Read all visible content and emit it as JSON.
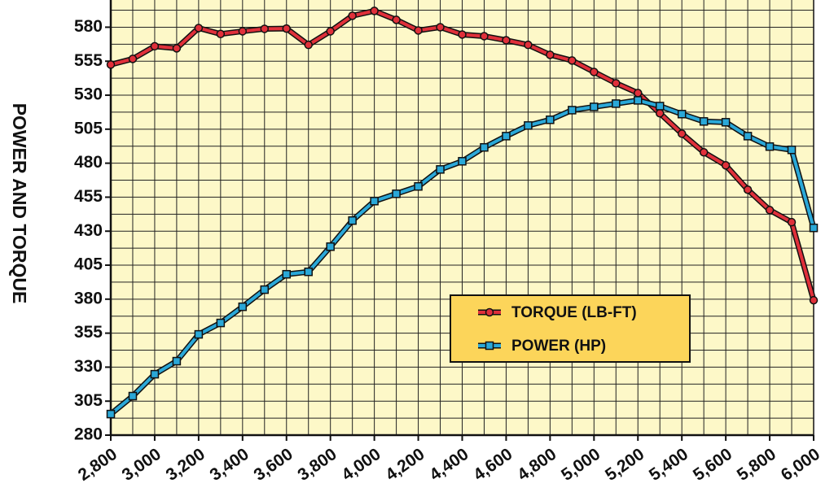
{
  "chart_data": {
    "type": "line",
    "y_label": "POWER AND TORQUE",
    "x": [
      2800,
      2900,
      3000,
      3100,
      3200,
      3300,
      3400,
      3500,
      3600,
      3700,
      3800,
      3900,
      4000,
      4100,
      4200,
      4300,
      4400,
      4500,
      4600,
      4700,
      4800,
      4900,
      5000,
      5100,
      5200,
      5300,
      5400,
      5500,
      5600,
      5700,
      5800,
      5900,
      6000
    ],
    "series": [
      {
        "name": "TORQUE (LB-FT)",
        "color": "#e0303a",
        "marker": "circle",
        "values": [
          552.5,
          556.7,
          566,
          564.5,
          579.4,
          575,
          577,
          578.8,
          579,
          567,
          577,
          588.4,
          592,
          585.4,
          577.6,
          580,
          574.6,
          573.4,
          570.4,
          567,
          559.7,
          555.5,
          547.1,
          538.8,
          531.6,
          516.7,
          501.7,
          488,
          478.4,
          460.5,
          445.5,
          436.6,
          379.2
        ]
      },
      {
        "name": "POWER (HP)",
        "color": "#2aa8d8",
        "marker": "square",
        "values": [
          295.5,
          308.7,
          324.8,
          334.4,
          354.1,
          362.5,
          374.4,
          387,
          398.3,
          400.1,
          418.6,
          437.8,
          452.1,
          457.5,
          462.9,
          475.4,
          481.4,
          491.6,
          499.9,
          507.7,
          511.9,
          519,
          521.4,
          523.8,
          526.2,
          522,
          516.1,
          510.7,
          510.1,
          499.9,
          492.2,
          489.8,
          432.4
        ]
      }
    ],
    "xlim": [
      2800,
      6000
    ],
    "xticks": [
      {
        "value": 2800,
        "label": "2,800"
      },
      {
        "value": 3000,
        "label": "3,000"
      },
      {
        "value": 3200,
        "label": "3,200"
      },
      {
        "value": 3400,
        "label": "3,400"
      },
      {
        "value": 3600,
        "label": "3,600"
      },
      {
        "value": 3800,
        "label": "3,800"
      },
      {
        "value": 4000,
        "label": "4,000"
      },
      {
        "value": 4200,
        "label": "4,200"
      },
      {
        "value": 4400,
        "label": "4,400"
      },
      {
        "value": 4600,
        "label": "4,600"
      },
      {
        "value": 4800,
        "label": "4,800"
      },
      {
        "value": 5000,
        "label": "5,000"
      },
      {
        "value": 5200,
        "label": "5,200"
      },
      {
        "value": 5400,
        "label": "5,400"
      },
      {
        "value": 5600,
        "label": "5,600"
      },
      {
        "value": 5800,
        "label": "5,800"
      },
      {
        "value": 6000,
        "label": "6,000"
      }
    ],
    "ylim": [
      280,
      600
    ],
    "yticks": [
      280,
      305,
      330,
      355,
      380,
      405,
      430,
      455,
      480,
      505,
      530,
      555,
      580
    ],
    "y_minor_ticks": [
      292.5,
      317.5,
      342.5,
      367.5,
      392.5,
      417.5,
      442.5,
      467.5,
      492.5,
      517.5,
      542.5,
      567.5,
      592.5
    ],
    "grid": true,
    "legend": "lower right",
    "background": "#fdf8c8",
    "legend_color": "#fcd55a"
  }
}
